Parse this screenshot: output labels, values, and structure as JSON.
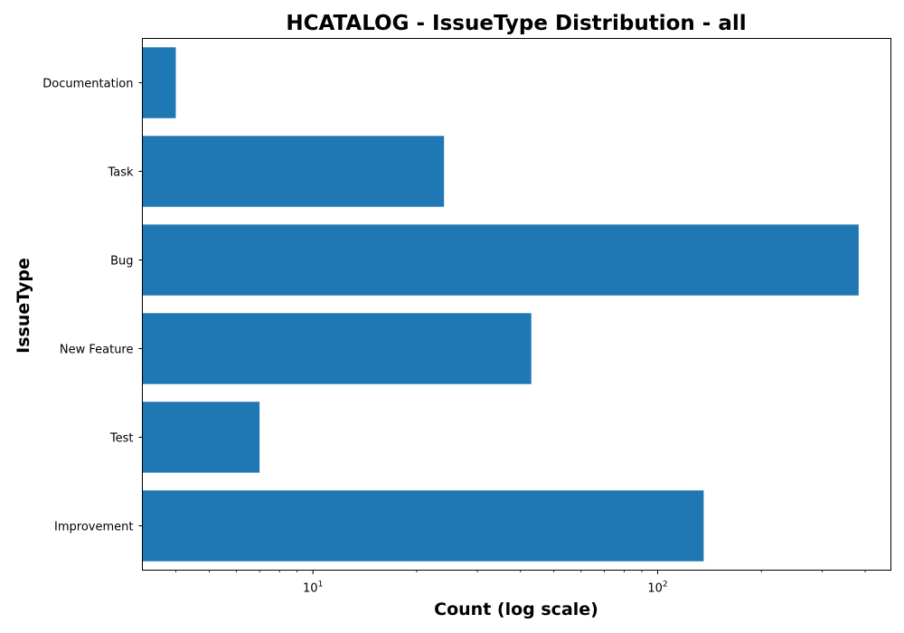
{
  "chart_data": {
    "type": "bar",
    "orientation": "horizontal",
    "title": "HCATALOG - IssueType Distribution - all",
    "xlabel": "Count (log scale)",
    "ylabel": "IssueType",
    "x_scale": "log",
    "xlim": [
      3.2,
      475
    ],
    "grid": false,
    "legend": "none",
    "bar_color": "#1f77b4",
    "categories": [
      "Documentation",
      "Task",
      "Bug",
      "New Feature",
      "Test",
      "Improvement"
    ],
    "values": [
      4,
      24,
      383,
      43,
      7,
      136
    ],
    "x_ticks": [
      {
        "value": 10,
        "base": "10",
        "exponent": "1"
      },
      {
        "value": 100,
        "base": "10",
        "exponent": "2"
      }
    ]
  }
}
